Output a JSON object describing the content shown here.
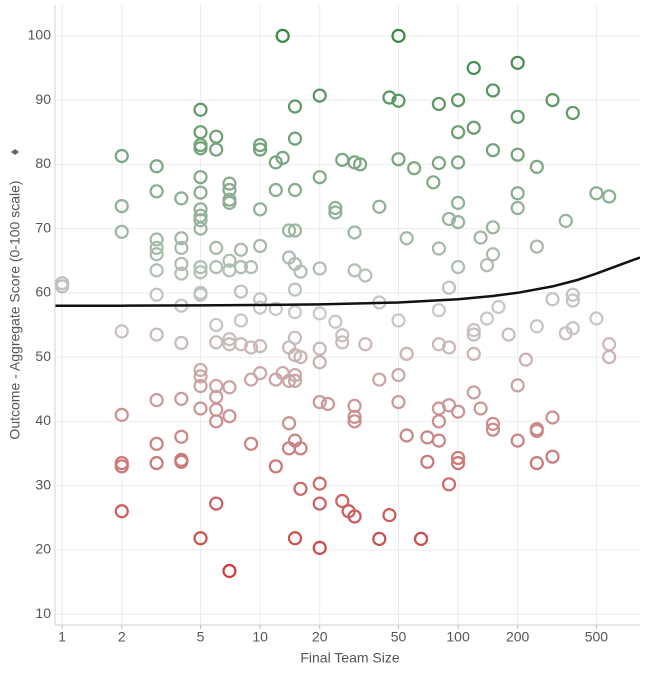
{
  "chart_data": {
    "type": "scatter",
    "x_label": "Final Team Size",
    "y_label": "Outcome - Aggregate Score (0-100 scale)",
    "x_log": true,
    "xlim": [
      0.92,
      830
    ],
    "ylim": [
      8.3,
      104.8
    ],
    "xticks": [
      1,
      2,
      5,
      10,
      20,
      50,
      100,
      200,
      500
    ],
    "yticks": [
      10,
      20,
      30,
      40,
      50,
      60,
      70,
      80,
      90,
      100
    ],
    "grid": true,
    "color_scale": {
      "low": "#cf1f1f",
      "mid": "#c9c9c9",
      "high": "#2a8236"
    },
    "x": [
      1,
      1,
      2,
      2,
      2,
      2,
      2,
      2,
      2,
      2,
      3,
      3,
      3,
      3,
      3,
      3,
      3,
      3,
      3,
      3,
      3,
      4,
      4,
      4,
      4,
      4,
      4,
      4,
      4,
      4,
      4,
      4,
      5,
      5,
      5,
      5,
      5,
      5,
      5,
      5,
      5,
      5,
      5,
      5,
      5,
      5,
      5,
      5,
      5,
      5,
      5,
      6,
      6,
      6,
      6,
      6,
      6,
      6,
      6,
      6,
      6,
      6,
      7,
      7,
      7,
      7,
      7,
      7,
      7,
      7,
      7,
      7,
      7,
      8,
      8,
      8,
      8,
      8,
      9,
      9,
      9,
      9,
      10,
      10,
      10,
      10,
      10,
      10,
      10,
      10,
      12,
      12,
      12,
      12,
      12,
      13,
      13,
      13,
      14,
      14,
      14,
      14,
      14,
      14,
      15,
      15,
      15,
      15,
      15,
      15,
      15,
      15,
      15,
      15,
      15,
      15,
      15,
      16,
      16,
      16,
      16,
      20,
      20,
      20,
      20,
      20,
      20,
      20,
      20,
      20,
      20,
      22,
      24,
      24,
      24,
      26,
      26,
      26,
      26,
      28,
      30,
      30,
      30,
      30,
      30,
      30,
      30,
      32,
      34,
      34,
      40,
      40,
      40,
      40,
      45,
      45,
      50,
      50,
      50,
      50,
      50,
      50,
      55,
      55,
      55,
      60,
      65,
      70,
      70,
      75,
      80,
      80,
      80,
      80,
      80,
      80,
      80,
      80,
      90,
      90,
      90,
      90,
      90,
      100,
      100,
      100,
      100,
      100,
      100,
      100,
      100,
      100,
      120,
      120,
      120,
      120,
      120,
      120,
      130,
      130,
      140,
      140,
      150,
      150,
      150,
      150,
      150,
      150,
      160,
      180,
      200,
      200,
      200,
      200,
      200,
      200,
      200,
      220,
      250,
      250,
      250,
      250,
      250,
      250,
      300,
      300,
      300,
      300,
      350,
      350,
      380,
      380,
      380,
      380,
      500,
      500,
      580,
      580,
      580
    ],
    "values": [
      61.5,
      61,
      81.3,
      73.5,
      69.5,
      54,
      41,
      33.5,
      33,
      26,
      79.7,
      75.8,
      68.3,
      67,
      66,
      63.5,
      59.7,
      53.5,
      43.3,
      36.5,
      33.5,
      74.7,
      68.5,
      67,
      64.5,
      63,
      58,
      52.2,
      43.5,
      37.6,
      34,
      33.7,
      88.5,
      85,
      83,
      82.5,
      78,
      75.6,
      73,
      72,
      71.3,
      70,
      64,
      63.2,
      60,
      59.7,
      48,
      47,
      45.5,
      42,
      21.8,
      84.3,
      82.3,
      67,
      64,
      55,
      52.3,
      45.5,
      43.8,
      41.8,
      40,
      27.2,
      77,
      76,
      74.5,
      74,
      65,
      63.5,
      52.8,
      52,
      45.3,
      40.8,
      16.7,
      66.7,
      64,
      60.2,
      55.7,
      52,
      64,
      51.5,
      46.5,
      36.5,
      83,
      82.3,
      73,
      67.3,
      59,
      57.7,
      51.7,
      47.5,
      80.3,
      76,
      57.5,
      46.5,
      33,
      100,
      81,
      47.5,
      69.7,
      65.5,
      51.5,
      46.3,
      39.7,
      35.8,
      89,
      84,
      76,
      69.7,
      64.5,
      60.5,
      57,
      53,
      50.3,
      47.2,
      46.3,
      37,
      21.8,
      63.3,
      50,
      35.8,
      29.5,
      90.7,
      78,
      63.8,
      56.8,
      51.3,
      49.2,
      43,
      30.3,
      27.2,
      20.3,
      42.7,
      73.2,
      72.5,
      55.5,
      80.7,
      53.4,
      52.3,
      27.6,
      26,
      80.3,
      69.4,
      63.5,
      42.4,
      40.7,
      40,
      25.2,
      80,
      62.7,
      52,
      73.4,
      58.5,
      46.5,
      21.7,
      90.4,
      25.4,
      100,
      89.9,
      80.8,
      55.7,
      47.2,
      43,
      68.5,
      50.5,
      37.8,
      79.4,
      21.7,
      37.5,
      33.7,
      77.2,
      89.4,
      80.2,
      66.9,
      57.3,
      52,
      42,
      40,
      37,
      71.5,
      60.8,
      51.5,
      42.5,
      30.2,
      90,
      85,
      80.3,
      74,
      71,
      64,
      41.5,
      34.3,
      33.5,
      95,
      85.7,
      54.2,
      53.5,
      50.5,
      44.5,
      68.6,
      42,
      64.3,
      56,
      91.5,
      82.2,
      70.2,
      66,
      39.6,
      38.7,
      57.8,
      53.5,
      95.8,
      87.4,
      81.5,
      75.5,
      73.2,
      45.6,
      37,
      49.6,
      79.6,
      67.2,
      54.8,
      38.8,
      38.5,
      33.5,
      90,
      59,
      40.6,
      34.5,
      71.2,
      53.7,
      88,
      59.7,
      58.8,
      54.5,
      75.5,
      56,
      75,
      52,
      50
    ],
    "trend": {
      "color": "#111111",
      "x": [
        0.92,
        2,
        5,
        10,
        20,
        50,
        100,
        150,
        200,
        300,
        400,
        500,
        650,
        830
      ],
      "y": [
        58,
        58,
        58.05,
        58.1,
        58.2,
        58.5,
        59,
        59.5,
        60,
        61,
        62,
        63,
        64.3,
        65.5
      ]
    }
  }
}
